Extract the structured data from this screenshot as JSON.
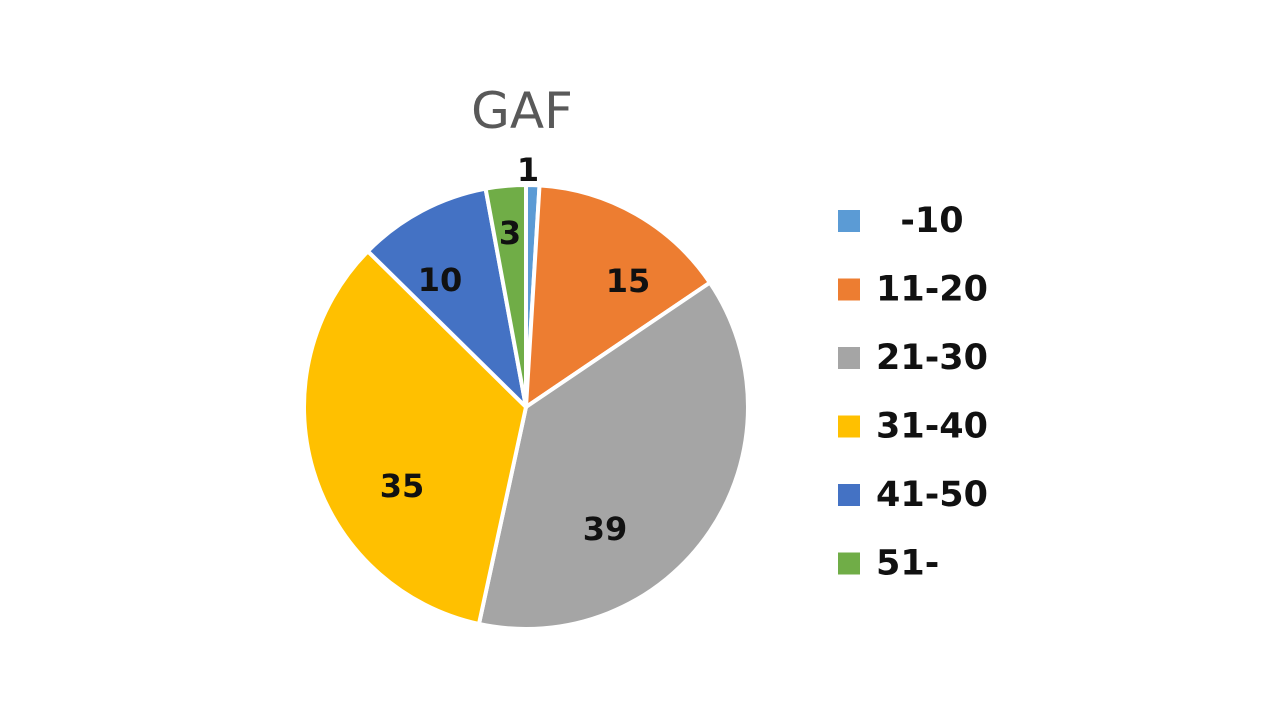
{
  "chart_data": {
    "type": "pie",
    "title": "GAF",
    "categories": [
      " -10",
      "11-20",
      "21-30",
      "31-40",
      "41-50",
      "51-"
    ],
    "values": [
      1,
      15,
      39,
      35,
      10,
      3
    ],
    "data_labels": [
      "1",
      "15",
      "39",
      "35",
      "10",
      "3"
    ],
    "colors": [
      "#5B9BD5",
      "#ED7D31",
      "#A5A5A5",
      "#FFC000",
      "#4472C4",
      "#70AD47"
    ],
    "legend_position": "right",
    "start_angle_deg": 0,
    "direction": "clockwise"
  }
}
